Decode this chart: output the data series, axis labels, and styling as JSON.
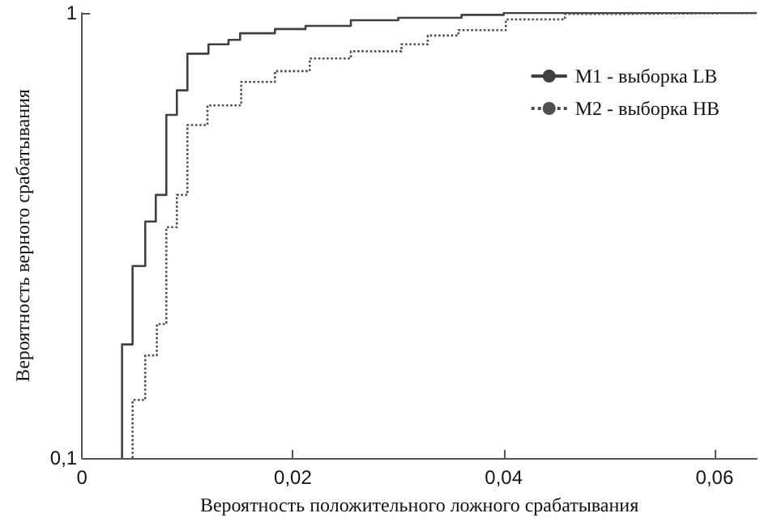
{
  "chart_data": {
    "type": "step",
    "xlabel": "Вероятность положительного ложного срабатывания",
    "ylabel": "Вероятность верного срабатывания",
    "xlim": [
      0,
      0.064
    ],
    "xticks": [
      {
        "value": 0,
        "label": "0"
      },
      {
        "value": 0.02,
        "label": "0,02"
      },
      {
        "value": 0.04,
        "label": "0,04"
      },
      {
        "value": 0.06,
        "label": "0,06"
      }
    ],
    "ylim": [
      0.1,
      1
    ],
    "yticks": [
      {
        "value": 0.1,
        "label": "0,1"
      },
      {
        "value": 1,
        "label": "1"
      }
    ],
    "log": "y",
    "grid": false,
    "legend": "top right",
    "marker": "none",
    "series": [
      {
        "name": "M1 - выборка LB",
        "color": "#404040",
        "line_style": "solid",
        "x": [
          0.0038,
          0.0038,
          0.0048,
          0.006,
          0.007,
          0.008,
          0.009,
          0.01,
          0.012,
          0.0139,
          0.015,
          0.0183,
          0.0212,
          0.0255,
          0.03,
          0.036,
          0.04,
          0.064
        ],
        "values": [
          0.1,
          0.18,
          0.27,
          0.34,
          0.39,
          0.59,
          0.67,
          0.81,
          0.85,
          0.87,
          0.9,
          0.92,
          0.935,
          0.963,
          0.975,
          0.99,
          1,
          1
        ]
      },
      {
        "name": "M2 - выборка HB",
        "color": "#505050",
        "line_style": "dotted",
        "x": [
          0.0048,
          0.0048,
          0.006,
          0.0071,
          0.008,
          0.009,
          0.01,
          0.0119,
          0.0151,
          0.0183,
          0.0216,
          0.0255,
          0.0303,
          0.0328,
          0.0357,
          0.0402,
          0.0458,
          0.0511,
          0.064
        ],
        "values": [
          0.1,
          0.135,
          0.17,
          0.2,
          0.33,
          0.39,
          0.56,
          0.62,
          0.7,
          0.74,
          0.79,
          0.82,
          0.85,
          0.89,
          0.915,
          0.967,
          0.995,
          1,
          1
        ]
      }
    ]
  }
}
